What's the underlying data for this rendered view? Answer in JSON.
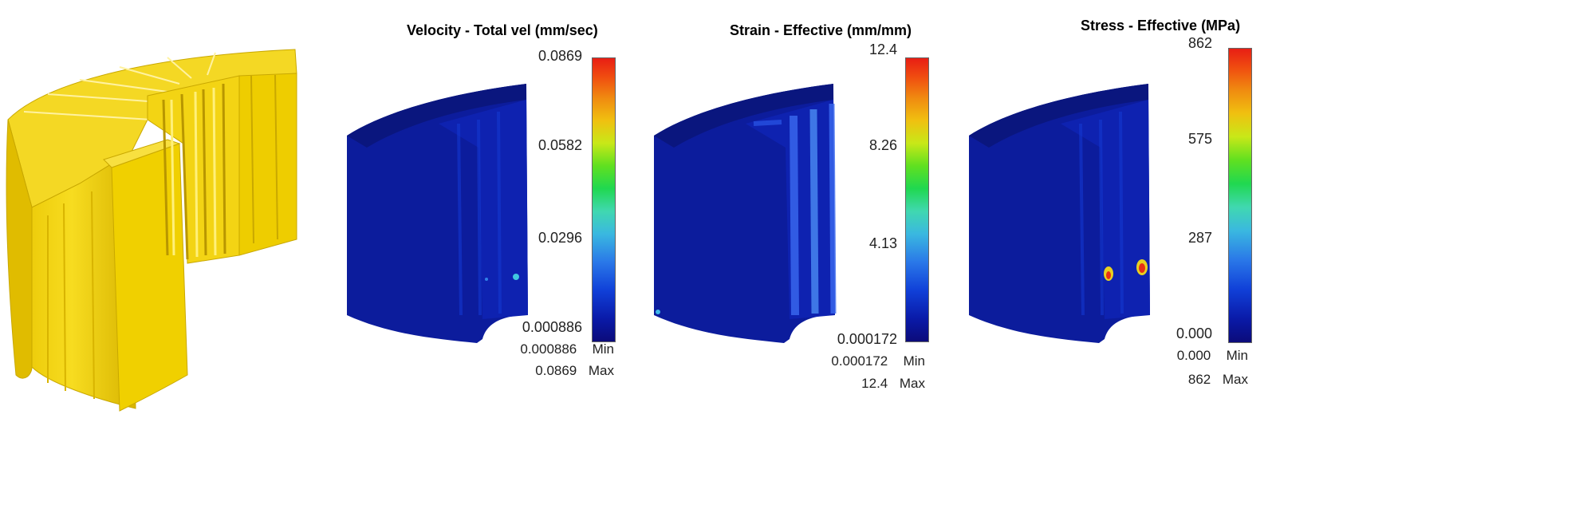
{
  "panels": [
    {
      "id": "velocity",
      "title": "Velocity - Total vel (mm/sec)",
      "ticks": [
        "0.0869",
        "0.0582",
        "0.0296",
        "0.000886"
      ],
      "min_value": "0.000886",
      "max_value": "0.0869",
      "min_label": "Min",
      "max_label": "Max"
    },
    {
      "id": "strain",
      "title": "Strain - Effective (mm/mm)",
      "ticks": [
        "12.4",
        "8.26",
        "4.13",
        "0.000172"
      ],
      "min_value": "0.000172",
      "max_value": "12.4",
      "min_label": "Min",
      "max_label": "Max"
    },
    {
      "id": "stress",
      "title": "Stress - Effective (MPa)",
      "ticks": [
        "862",
        "575",
        "287",
        "0.000"
      ],
      "min_value": "0.000",
      "max_value": "862",
      "min_label": "Min",
      "max_label": "Max"
    }
  ],
  "colors": {
    "part_yellow": "#f2d20a",
    "field_blue": "#0a1a9a",
    "colormap": [
      "#0b0b7a",
      "#1040d8",
      "#3ab8e0",
      "#20d850",
      "#c8e818",
      "#f08a10",
      "#e81e14"
    ]
  }
}
